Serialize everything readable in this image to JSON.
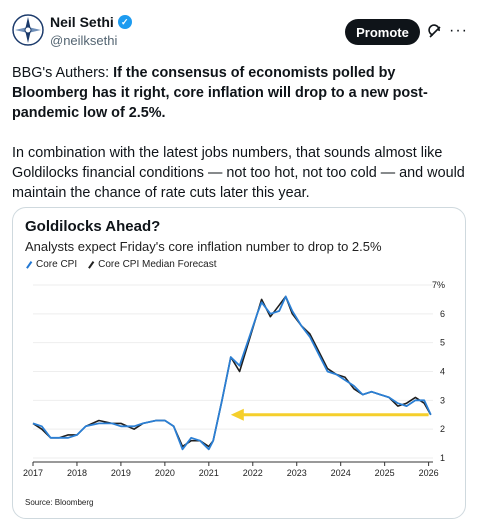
{
  "author": {
    "name": "Neil Sethi",
    "handle": "@neilksethi",
    "avatar_icon": "compass-logo-avatar",
    "verified_icon": "verified-badge-icon"
  },
  "header": {
    "promote_label": "Promote",
    "grok_icon": "grok-icon",
    "more_label": "···"
  },
  "tweet": {
    "lead_plain": "BBG's Authers: ",
    "lead_bold": "If the consensus of economists polled by Bloomberg has it right, core inflation will drop to a new post-pandemic low of 2.5%.",
    "paragraph2": "In combination with the latest jobs numbers, that sounds almost like Goldilocks financial conditions — not too hot, not too cold — and would maintain the chance of rate cuts later this year."
  },
  "card": {
    "title": "Goldilocks Ahead?",
    "subtitle": "Analysts expect Friday's core inflation number to drop to 2.5%",
    "legend": [
      "Core CPI",
      "Core CPI Median Forecast"
    ],
    "source": "Source: Bloomberg",
    "ylim_top_label": "7%"
  },
  "chart_data": {
    "type": "line",
    "title": "Goldilocks Ahead?",
    "xlabel": "",
    "ylabel": "",
    "x_ticks": [
      "2017",
      "2018",
      "2019",
      "2020",
      "2021",
      "2022",
      "2023",
      "2024",
      "2025",
      "2026"
    ],
    "y_ticks": [
      "1",
      "2",
      "3",
      "4",
      "5",
      "6",
      "7%"
    ],
    "ylim": [
      1,
      7
    ],
    "xlim": [
      2017,
      2026.1
    ],
    "annotation": "yellow arrow pointing left at 2.5%",
    "arrow_value": 2.5,
    "series": [
      {
        "name": "Core CPI",
        "color": "#1f1f1f",
        "points": [
          [
            2017.0,
            2.2
          ],
          [
            2017.2,
            2.0
          ],
          [
            2017.4,
            1.7
          ],
          [
            2017.6,
            1.7
          ],
          [
            2017.8,
            1.8
          ],
          [
            2018.0,
            1.8
          ],
          [
            2018.2,
            2.1
          ],
          [
            2018.5,
            2.3
          ],
          [
            2018.8,
            2.2
          ],
          [
            2019.0,
            2.2
          ],
          [
            2019.3,
            2.0
          ],
          [
            2019.5,
            2.2
          ],
          [
            2019.8,
            2.3
          ],
          [
            2020.0,
            2.3
          ],
          [
            2020.2,
            2.1
          ],
          [
            2020.4,
            1.4
          ],
          [
            2020.6,
            1.6
          ],
          [
            2020.8,
            1.6
          ],
          [
            2021.0,
            1.4
          ],
          [
            2021.1,
            1.6
          ],
          [
            2021.3,
            3.0
          ],
          [
            2021.5,
            4.5
          ],
          [
            2021.7,
            4.0
          ],
          [
            2021.9,
            5.0
          ],
          [
            2022.1,
            6.0
          ],
          [
            2022.2,
            6.5
          ],
          [
            2022.4,
            5.9
          ],
          [
            2022.6,
            6.3
          ],
          [
            2022.75,
            6.6
          ],
          [
            2022.9,
            6.0
          ],
          [
            2023.1,
            5.6
          ],
          [
            2023.3,
            5.3
          ],
          [
            2023.5,
            4.7
          ],
          [
            2023.7,
            4.1
          ],
          [
            2023.9,
            3.9
          ],
          [
            2024.1,
            3.8
          ],
          [
            2024.3,
            3.4
          ],
          [
            2024.5,
            3.2
          ],
          [
            2024.7,
            3.3
          ],
          [
            2024.9,
            3.2
          ],
          [
            2025.1,
            3.1
          ],
          [
            2025.3,
            2.8
          ],
          [
            2025.5,
            2.9
          ],
          [
            2025.7,
            3.1
          ],
          [
            2025.9,
            2.9
          ],
          [
            2026.05,
            2.5
          ]
        ]
      },
      {
        "name": "Core CPI Median Forecast",
        "color": "#2b7fd4",
        "points": [
          [
            2017.0,
            2.2
          ],
          [
            2017.2,
            2.1
          ],
          [
            2017.4,
            1.7
          ],
          [
            2017.6,
            1.7
          ],
          [
            2017.8,
            1.7
          ],
          [
            2018.0,
            1.8
          ],
          [
            2018.2,
            2.1
          ],
          [
            2018.5,
            2.2
          ],
          [
            2018.8,
            2.2
          ],
          [
            2019.0,
            2.1
          ],
          [
            2019.3,
            2.1
          ],
          [
            2019.5,
            2.2
          ],
          [
            2019.8,
            2.3
          ],
          [
            2020.0,
            2.3
          ],
          [
            2020.2,
            2.1
          ],
          [
            2020.4,
            1.3
          ],
          [
            2020.6,
            1.7
          ],
          [
            2020.8,
            1.6
          ],
          [
            2021.0,
            1.3
          ],
          [
            2021.1,
            1.6
          ],
          [
            2021.3,
            3.0
          ],
          [
            2021.5,
            4.5
          ],
          [
            2021.7,
            4.2
          ],
          [
            2021.9,
            5.1
          ],
          [
            2022.1,
            6.0
          ],
          [
            2022.2,
            6.4
          ],
          [
            2022.4,
            6.0
          ],
          [
            2022.6,
            6.1
          ],
          [
            2022.75,
            6.6
          ],
          [
            2022.9,
            6.1
          ],
          [
            2023.1,
            5.6
          ],
          [
            2023.3,
            5.2
          ],
          [
            2023.5,
            4.6
          ],
          [
            2023.7,
            4.0
          ],
          [
            2023.9,
            3.9
          ],
          [
            2024.1,
            3.7
          ],
          [
            2024.3,
            3.5
          ],
          [
            2024.5,
            3.2
          ],
          [
            2024.7,
            3.3
          ],
          [
            2024.9,
            3.2
          ],
          [
            2025.1,
            3.1
          ],
          [
            2025.3,
            2.9
          ],
          [
            2025.5,
            2.8
          ],
          [
            2025.7,
            3.0
          ],
          [
            2025.9,
            3.0
          ],
          [
            2026.05,
            2.5
          ]
        ]
      }
    ]
  }
}
